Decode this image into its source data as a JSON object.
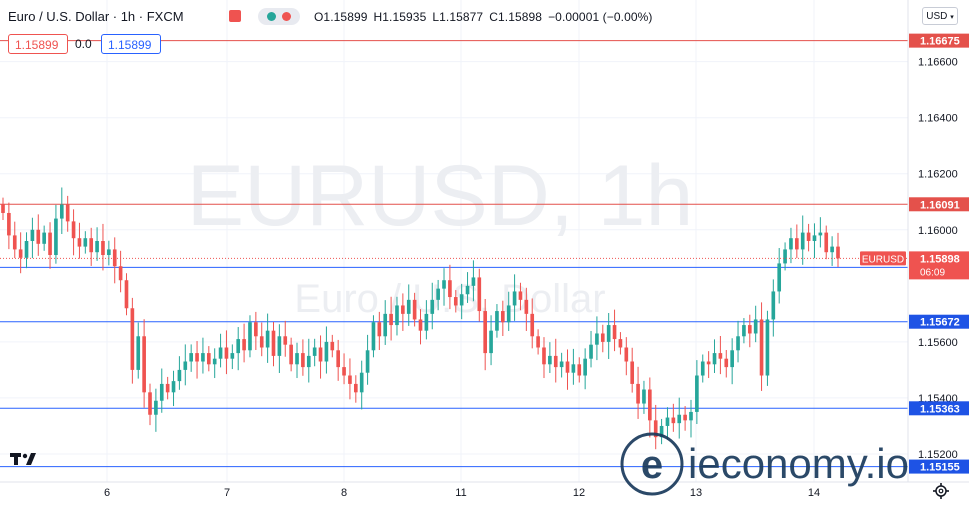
{
  "header": {
    "symbol_title": "Euro / U.S. Dollar · 1h · FXCM",
    "open_label": "O1.15899",
    "high_label": "H1.15935",
    "low_label": "L1.15877",
    "close_label": "C1.15898",
    "change_label": "−0.00001 (−0.00%)"
  },
  "trade_bar": {
    "sell_price": "1.15899",
    "spread": "0.0",
    "buy_price": "1.15899"
  },
  "currency_select": "USD",
  "watermark": {
    "symbol": "EURUSD, 1h",
    "name": "Euro / U.S. Dollar"
  },
  "brand_watermark": "ieconomy.io",
  "colors": {
    "up": "#26a69a",
    "down": "#ef5350",
    "resistance_line": "#e4514b",
    "support_line": "#2962ff",
    "current_price": "#ef5350",
    "axis_label_blue": "#1e53e5",
    "axis_label_red": "#e4514b"
  },
  "icons": [
    "tradingview-logo-icon",
    "settings-gear-icon",
    "chevron-down-icon"
  ],
  "chart_data": {
    "type": "candlestick",
    "symbol": "EURUSD",
    "timeframe": "1h",
    "ylim": [
      1.151,
      1.1682
    ],
    "y_ticks": [
      "1.16600",
      "1.16400",
      "1.16200",
      "1.16000",
      "1.15600",
      "1.15400",
      "1.15200"
    ],
    "x_ticks": [
      "6",
      "7",
      "8",
      "11",
      "12",
      "13",
      "14"
    ],
    "horizontal_lines": [
      {
        "value": 1.16675,
        "label": "1.16675",
        "color": "red"
      },
      {
        "value": 1.16091,
        "label": "1.16091",
        "color": "red"
      },
      {
        "value": 1.15866,
        "label": "1.15866",
        "color": "blue"
      },
      {
        "value": 1.15672,
        "label": "1.15672",
        "color": "blue"
      },
      {
        "value": 1.15363,
        "label": "1.15363",
        "color": "blue"
      },
      {
        "value": 1.15155,
        "label": "1.15155",
        "color": "blue"
      }
    ],
    "current_price": {
      "value": 1.15898,
      "label": "1.15898",
      "countdown": "06:09",
      "tag": "EURUSD"
    },
    "series_close": [
      1.1606,
      1.1598,
      1.1593,
      1.159,
      1.1596,
      1.16,
      1.1595,
      1.1599,
      1.1591,
      1.1604,
      1.1609,
      1.1603,
      1.1597,
      1.1594,
      1.1597,
      1.1592,
      1.1596,
      1.1591,
      1.1593,
      1.1587,
      1.1582,
      1.1572,
      1.155,
      1.1562,
      1.1542,
      1.1534,
      1.1539,
      1.1545,
      1.1542,
      1.1546,
      1.155,
      1.1553,
      1.1556,
      1.1553,
      1.1556,
      1.1552,
      1.1554,
      1.1558,
      1.1554,
      1.1556,
      1.1561,
      1.1557,
      1.1567,
      1.1562,
      1.1558,
      1.1564,
      1.1555,
      1.1562,
      1.1559,
      1.1552,
      1.1556,
      1.1551,
      1.1555,
      1.1558,
      1.1553,
      1.156,
      1.1557,
      1.1551,
      1.1548,
      1.1545,
      1.1542,
      1.1549,
      1.1557,
      1.1567,
      1.1562,
      1.157,
      1.1566,
      1.1573,
      1.157,
      1.1575,
      1.1568,
      1.1564,
      1.157,
      1.1575,
      1.1579,
      1.1582,
      1.1576,
      1.1573,
      1.1577,
      1.158,
      1.1583,
      1.1571,
      1.1556,
      1.1564,
      1.1571,
      1.1567,
      1.1573,
      1.1578,
      1.1575,
      1.157,
      1.1562,
      1.1558,
      1.1552,
      1.1555,
      1.1551,
      1.1553,
      1.1549,
      1.1552,
      1.1548,
      1.1554,
      1.1559,
      1.1563,
      1.156,
      1.1566,
      1.1561,
      1.1558,
      1.1553,
      1.1545,
      1.1538,
      1.1543,
      1.1532,
      1.1526,
      1.153,
      1.1533,
      1.1531,
      1.1534,
      1.1532,
      1.1535,
      1.1548,
      1.1553,
      1.1552,
      1.1556,
      1.1554,
      1.1551,
      1.1557,
      1.1562,
      1.1566,
      1.1563,
      1.1568,
      1.1548,
      1.1568,
      1.1578,
      1.1588,
      1.1593,
      1.1597,
      1.1593,
      1.1599,
      1.1596,
      1.1598,
      1.1599,
      1.1592,
      1.1594,
      1.15898
    ]
  }
}
